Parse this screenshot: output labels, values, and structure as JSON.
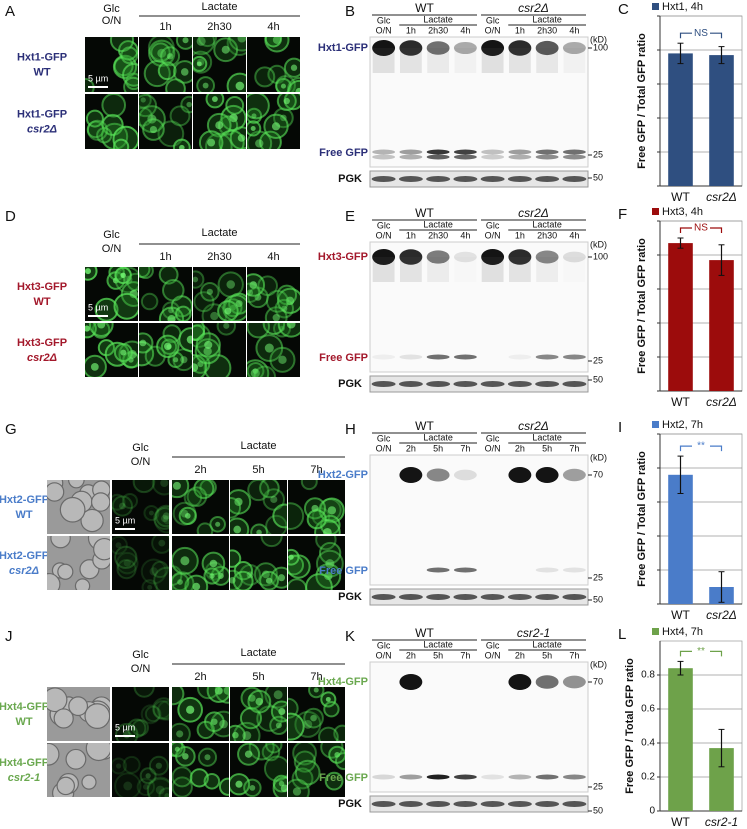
{
  "figure": {
    "rows": [
      {
        "letters": [
          "A",
          "B",
          "C"
        ],
        "microscopy": {
          "glc": [
            "Glc",
            "O/N"
          ],
          "lactate": "Lactate",
          "times": [
            "1h",
            "2h30",
            "4h"
          ],
          "strains": [
            {
              "protein": "Hxt1-GFP",
              "strain": "WT"
            },
            {
              "protein": "Hxt1-GFP",
              "strain": "csr2Δ"
            }
          ],
          "scale": "5 µm",
          "color": "#2b2f78",
          "brightfield": false
        },
        "blot": {
          "groups": [
            "WT",
            "csr2Δ"
          ],
          "glc": [
            "Glc",
            "O/N"
          ],
          "lactate": "Lactate",
          "times": [
            "1h",
            "2h30",
            "4h"
          ],
          "band": "Hxt1-GFP",
          "free": "Free GFP",
          "loading": "PGK",
          "unit": "(kD)",
          "markers": [
            100,
            25,
            50
          ]
        }
      },
      {
        "letters": [
          "D",
          "E",
          "F"
        ],
        "microscopy": {
          "glc": [
            "Glc",
            "O/N"
          ],
          "lactate": "Lactate",
          "times": [
            "1h",
            "2h30",
            "4h"
          ],
          "strains": [
            {
              "protein": "Hxt3-GFP",
              "strain": "WT"
            },
            {
              "protein": "Hxt3-GFP",
              "strain": "csr2Δ"
            }
          ],
          "scale": "5 µm",
          "color": "#a3182b",
          "brightfield": false
        },
        "blot": {
          "groups": [
            "WT",
            "csr2Δ"
          ],
          "glc": [
            "Glc",
            "O/N"
          ],
          "lactate": "Lactate",
          "times": [
            "1h",
            "2h30",
            "4h"
          ],
          "band": "Hxt3-GFP",
          "free": "Free GFP",
          "loading": "PGK",
          "unit": "(kD)",
          "markers": [
            100,
            25,
            50
          ]
        }
      },
      {
        "letters": [
          "G",
          "H",
          "I"
        ],
        "microscopy": {
          "glc": [
            "Glc",
            "O/N"
          ],
          "lactate": "Lactate",
          "times": [
            "2h",
            "5h",
            "7h"
          ],
          "strains": [
            {
              "protein": "Hxt2-GFP",
              "strain": "WT"
            },
            {
              "protein": "Hxt2-GFP",
              "strain": "csr2Δ"
            }
          ],
          "scale": "5 µm",
          "color": "#4a7cc9",
          "brightfield": true
        },
        "blot": {
          "groups": [
            "WT",
            "csr2Δ"
          ],
          "glc": [
            "Glc",
            "O/N"
          ],
          "lactate": "Lactate",
          "times": [
            "2h",
            "5h",
            "7h"
          ],
          "band": "Hxt2-GFP",
          "free": "Free GFP",
          "loading": "PGK",
          "unit": "(kD)",
          "markers": [
            70,
            25,
            50
          ]
        }
      },
      {
        "letters": [
          "J",
          "K",
          "L"
        ],
        "microscopy": {
          "glc": [
            "Glc",
            "O/N"
          ],
          "lactate": "Lactate",
          "times": [
            "2h",
            "5h",
            "7h"
          ],
          "strains": [
            {
              "protein": "Hxt4-GFP",
              "strain": "WT"
            },
            {
              "protein": "Hxt4-GFP",
              "strain": "csr2-1"
            }
          ],
          "scale": "5 µm",
          "color": "#6aa84f",
          "brightfield": true
        },
        "blot": {
          "groups": [
            "WT",
            "csr2-1"
          ],
          "glc": [
            "Glc",
            "O/N"
          ],
          "lactate": "Lactate",
          "times": [
            "2h",
            "5h",
            "7h"
          ],
          "band": "Hxt4-GFP",
          "free": "Free GFP",
          "loading": "PGK",
          "unit": "(kD)",
          "markers": [
            70,
            25,
            50
          ]
        }
      }
    ]
  },
  "chart_data": [
    {
      "type": "bar",
      "categories": [
        "WT",
        "csr2Δ"
      ],
      "ylabel": "Free GFP / Total GFP ratio",
      "series": [
        {
          "name": "Hxt1, 4h",
          "color": "#2f4f80",
          "values": [
            0.78,
            0.77
          ],
          "errors": [
            0.06,
            0.05
          ]
        }
      ],
      "ylim": [
        0,
        1
      ],
      "yticks": [
        0,
        0.2,
        0.4,
        0.6,
        0.8,
        1
      ],
      "tick_labels": false,
      "grid": true,
      "annotation": "NS"
    },
    {
      "type": "bar",
      "categories": [
        "WT",
        "csr2Δ"
      ],
      "ylabel": "Free GFP / Total GFP ratio",
      "series": [
        {
          "name": "Hxt3, 4h",
          "color": "#9c0c0c",
          "values": [
            0.87,
            0.77
          ],
          "errors": [
            0.03,
            0.09
          ]
        }
      ],
      "ylim": [
        0,
        1
      ],
      "yticks": [
        0,
        0.2,
        0.4,
        0.6,
        0.8,
        1
      ],
      "tick_labels": false,
      "grid": true,
      "annotation": "NS"
    },
    {
      "type": "bar",
      "categories": [
        "WT",
        "csr2Δ"
      ],
      "ylabel": "Free GFP / Total GFP ratio",
      "series": [
        {
          "name": "Hxt2, 7h",
          "color": "#4a7cc9",
          "values": [
            0.76,
            0.1
          ],
          "errors": [
            0.11,
            0.09
          ]
        }
      ],
      "ylim": [
        0,
        1
      ],
      "yticks": [
        0,
        0.2,
        0.4,
        0.6,
        0.8,
        1
      ],
      "tick_labels": false,
      "grid": true,
      "annotation": "**"
    },
    {
      "type": "bar",
      "categories": [
        "WT",
        "csr2-1"
      ],
      "ylabel": "Free GFP / Total GFP ratio",
      "series": [
        {
          "name": "Hxt4, 7h",
          "color": "#6ea24a",
          "values": [
            0.84,
            0.37
          ],
          "errors": [
            0.04,
            0.11
          ]
        }
      ],
      "ylim": [
        0,
        1
      ],
      "yticks": [
        0,
        0.2,
        0.4,
        0.6,
        0.8
      ],
      "tick_labels": true,
      "grid": true,
      "annotation": "**"
    }
  ]
}
